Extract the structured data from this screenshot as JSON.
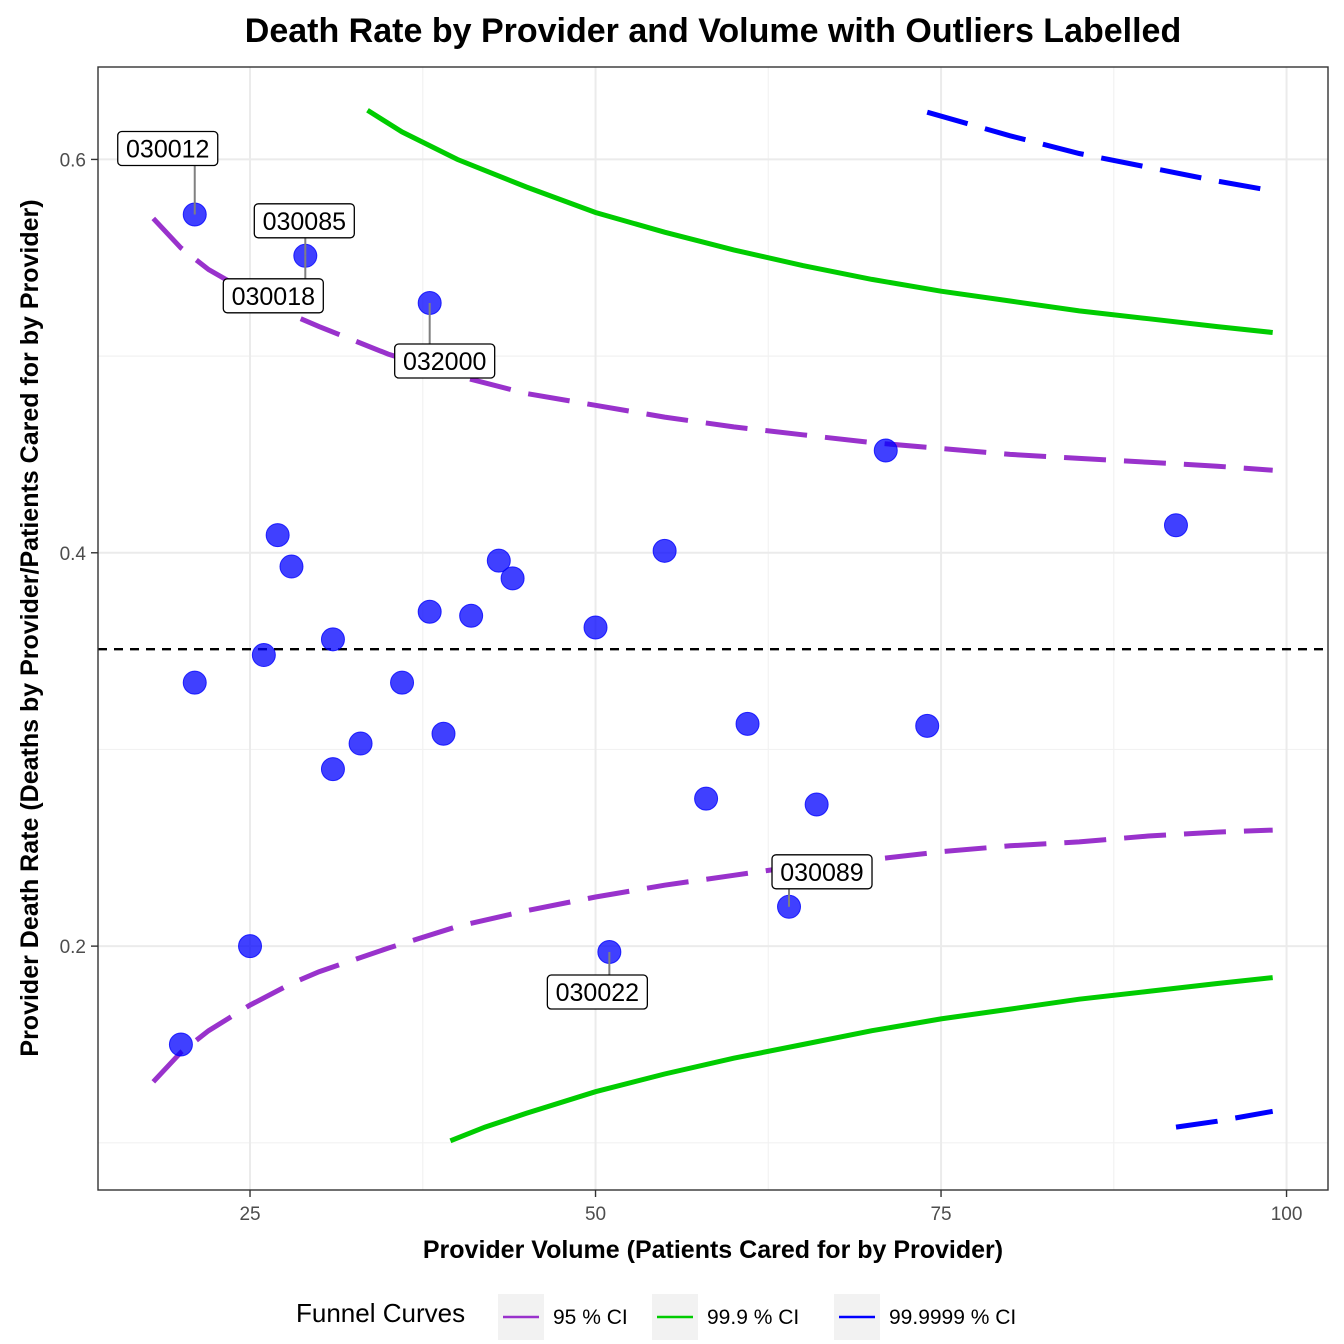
{
  "chart_data": {
    "type": "scatter",
    "title": "Death Rate by Provider and Volume with Outliers Labelled",
    "xlabel": "Provider Volume (Patients Cared for by Provider)",
    "ylabel": "Provider Death Rate (Deaths by Provider/Patients Cared for by Provider)",
    "xlim": [
      14,
      103
    ],
    "ylim": [
      0.076,
      0.647
    ],
    "x_ticks": [
      25,
      50,
      75,
      100
    ],
    "x_tick_labels": [
      "25",
      "50",
      "75",
      "100"
    ],
    "y_ticks": [
      0.2,
      0.4,
      0.6
    ],
    "y_tick_labels": [
      "0.2",
      "0.4",
      "0.6"
    ],
    "grid": true,
    "reference_line": {
      "y": 0.351,
      "style": "dashed",
      "color": "#000000"
    },
    "points_color": "#0000ff",
    "points": [
      {
        "x": 20,
        "y": 0.15
      },
      {
        "x": 21,
        "y": 0.572
      },
      {
        "x": 21,
        "y": 0.334
      },
      {
        "x": 25,
        "y": 0.2
      },
      {
        "x": 26,
        "y": 0.348
      },
      {
        "x": 27,
        "y": 0.409
      },
      {
        "x": 28,
        "y": 0.393
      },
      {
        "x": 29,
        "y": 0.551
      },
      {
        "x": 31,
        "y": 0.356
      },
      {
        "x": 31,
        "y": 0.29
      },
      {
        "x": 33,
        "y": 0.303
      },
      {
        "x": 36,
        "y": 0.334
      },
      {
        "x": 38,
        "y": 0.527
      },
      {
        "x": 38,
        "y": 0.37
      },
      {
        "x": 39,
        "y": 0.308
      },
      {
        "x": 41,
        "y": 0.368
      },
      {
        "x": 43,
        "y": 0.396
      },
      {
        "x": 44,
        "y": 0.387
      },
      {
        "x": 50,
        "y": 0.362
      },
      {
        "x": 51,
        "y": 0.197
      },
      {
        "x": 55,
        "y": 0.401
      },
      {
        "x": 58,
        "y": 0.275
      },
      {
        "x": 61,
        "y": 0.313
      },
      {
        "x": 64,
        "y": 0.22
      },
      {
        "x": 66,
        "y": 0.272
      },
      {
        "x": 71,
        "y": 0.452
      },
      {
        "x": 74,
        "y": 0.312
      },
      {
        "x": 92,
        "y": 0.414
      }
    ],
    "outlier_labels": [
      {
        "text": "030012",
        "x": 21,
        "y": 0.572
      },
      {
        "text": "030085",
        "x": 29,
        "y": 0.551
      },
      {
        "text": "030018",
        "x": 29,
        "y": 0.551
      },
      {
        "text": "032000",
        "x": 38,
        "y": 0.527
      },
      {
        "text": "030089",
        "x": 64,
        "y": 0.22
      },
      {
        "text": "030022",
        "x": 51,
        "y": 0.197
      }
    ],
    "series": [
      {
        "name": "95 % CI",
        "color": "#9932cc",
        "style": "dashed",
        "upper": {
          "x": [
            18,
            20,
            22,
            25,
            28,
            30,
            35,
            40,
            45,
            50,
            55,
            60,
            65,
            70,
            75,
            80,
            85,
            90,
            95,
            99
          ],
          "y": [
            0.57,
            0.555,
            0.544,
            0.532,
            0.521,
            0.515,
            0.501,
            0.49,
            0.481,
            0.475,
            0.469,
            0.464,
            0.46,
            0.456,
            0.453,
            0.45,
            0.448,
            0.446,
            0.444,
            0.442
          ]
        },
        "lower": {
          "x": [
            18,
            20,
            22,
            25,
            28,
            30,
            35,
            40,
            45,
            50,
            55,
            60,
            65,
            70,
            75,
            80,
            85,
            90,
            95,
            99
          ],
          "y": [
            0.131,
            0.146,
            0.157,
            0.17,
            0.181,
            0.187,
            0.199,
            0.21,
            0.218,
            0.225,
            0.231,
            0.236,
            0.241,
            0.244,
            0.248,
            0.251,
            0.253,
            0.256,
            0.258,
            0.259
          ]
        }
      },
      {
        "name": "99.9 % CI",
        "color": "#00cc00",
        "style": "solid",
        "upper": {
          "x": [
            33.5,
            36,
            40,
            45,
            50,
            55,
            60,
            65,
            70,
            75,
            80,
            85,
            90,
            95,
            99
          ],
          "y": [
            0.625,
            0.614,
            0.6,
            0.586,
            0.573,
            0.563,
            0.554,
            0.546,
            0.539,
            0.533,
            0.528,
            0.523,
            0.519,
            0.515,
            0.512
          ]
        },
        "lower": {
          "x": [
            39.5,
            42,
            45,
            50,
            55,
            60,
            65,
            70,
            75,
            80,
            85,
            90,
            95,
            99
          ],
          "y": [
            0.101,
            0.108,
            0.115,
            0.126,
            0.135,
            0.143,
            0.15,
            0.157,
            0.163,
            0.168,
            0.173,
            0.177,
            0.181,
            0.184
          ]
        }
      },
      {
        "name": "99.9999 % CI",
        "color": "#0000ff",
        "style": "dashed",
        "upper": {
          "x": [
            74,
            80,
            85,
            90,
            95,
            99
          ],
          "y": [
            0.624,
            0.612,
            0.603,
            0.596,
            0.589,
            0.584
          ]
        },
        "lower": {
          "x": [
            92,
            95,
            99
          ],
          "y": [
            0.108,
            0.111,
            0.116
          ]
        }
      }
    ],
    "legend": {
      "title": "Funnel Curves",
      "position": "bottom",
      "items": [
        {
          "label": "95 % CI",
          "color": "#9932cc"
        },
        {
          "label": "99.9 % CI",
          "color": "#00cc00"
        },
        {
          "label": "99.9999 % CI",
          "color": "#0000ff"
        }
      ]
    }
  }
}
